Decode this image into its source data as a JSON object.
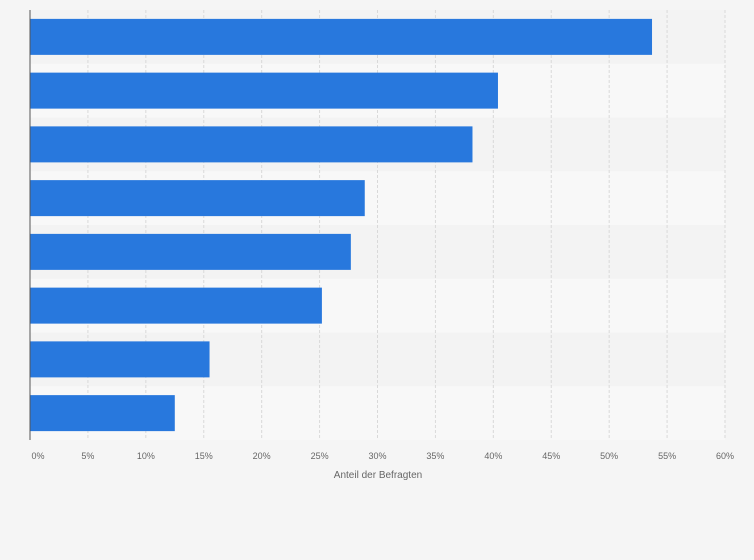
{
  "chart_data": {
    "type": "bar",
    "orientation": "horizontal",
    "categories": [
      "",
      "",
      "",
      "",
      "",
      "",
      "",
      ""
    ],
    "values": [
      53.7,
      40.4,
      38.2,
      28.9,
      27.7,
      25.2,
      15.5,
      12.5
    ],
    "xlabel": "Anteil der Befragten",
    "ylabel": "",
    "xlim": [
      0,
      60
    ],
    "x_ticks": [
      "0%",
      "5%",
      "10%",
      "15%",
      "20%",
      "25%",
      "30%",
      "35%",
      "40%",
      "45%",
      "50%",
      "55%",
      "60%"
    ],
    "grid": true,
    "legend": "none",
    "colors": {
      "bar": "#2878dd",
      "band_light": "#f8f8f8",
      "band_dark": "#f3f3f3",
      "grid": "#d9d9d9",
      "axis": "#555555",
      "tick_text": "#666666"
    }
  }
}
